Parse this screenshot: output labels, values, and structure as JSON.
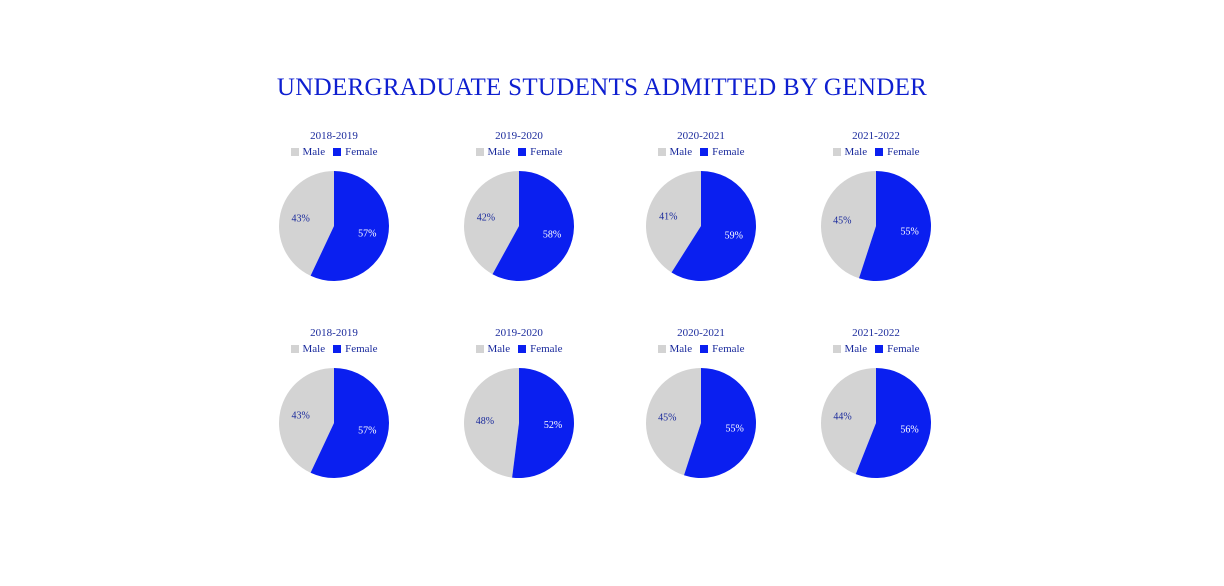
{
  "title": "UNDERGRADUATE STUDENTS ADMITTED BY GENDER",
  "colors": {
    "title": "#0e1fd0",
    "male": "#d3d3d3",
    "female": "#0a1ff0",
    "male_label": "#1a2a9c",
    "female_label": "#ffffff"
  },
  "chart_data": [
    {
      "type": "pie",
      "title": "2018-2019",
      "legend": [
        "Male",
        "Female"
      ],
      "slices": [
        {
          "label": "Male",
          "value": 43,
          "text": "43%"
        },
        {
          "label": "Female",
          "value": 57,
          "text": "57%"
        }
      ]
    },
    {
      "type": "pie",
      "title": "2019-2020",
      "legend": [
        "Male",
        "Female"
      ],
      "slices": [
        {
          "label": "Male",
          "value": 42,
          "text": "42%"
        },
        {
          "label": "Female",
          "value": 58,
          "text": "58%"
        }
      ]
    },
    {
      "type": "pie",
      "title": "2020-2021",
      "legend": [
        "Male",
        "Female"
      ],
      "slices": [
        {
          "label": "Male",
          "value": 41,
          "text": "41%"
        },
        {
          "label": "Female",
          "value": 59,
          "text": "59%"
        }
      ]
    },
    {
      "type": "pie",
      "title": "2021-2022",
      "legend": [
        "Male",
        "Female"
      ],
      "slices": [
        {
          "label": "Male",
          "value": 45,
          "text": "45%"
        },
        {
          "label": "Female",
          "value": 55,
          "text": "55%"
        }
      ]
    },
    {
      "type": "pie",
      "title": "2018-2019",
      "legend": [
        "Male",
        "Female"
      ],
      "slices": [
        {
          "label": "Male",
          "value": 43,
          "text": "43%"
        },
        {
          "label": "Female",
          "value": 57,
          "text": "57%"
        }
      ]
    },
    {
      "type": "pie",
      "title": "2019-2020",
      "legend": [
        "Male",
        "Female"
      ],
      "slices": [
        {
          "label": "Male",
          "value": 48,
          "text": "48%"
        },
        {
          "label": "Female",
          "value": 52,
          "text": "52%"
        }
      ]
    },
    {
      "type": "pie",
      "title": "2020-2021",
      "legend": [
        "Male",
        "Female"
      ],
      "slices": [
        {
          "label": "Male",
          "value": 45,
          "text": "45%"
        },
        {
          "label": "Female",
          "value": 55,
          "text": "55%"
        }
      ]
    },
    {
      "type": "pie",
      "title": "2021-2022",
      "legend": [
        "Male",
        "Female"
      ],
      "slices": [
        {
          "label": "Male",
          "value": 44,
          "text": "44%"
        },
        {
          "label": "Female",
          "value": 56,
          "text": "56%"
        }
      ]
    }
  ]
}
